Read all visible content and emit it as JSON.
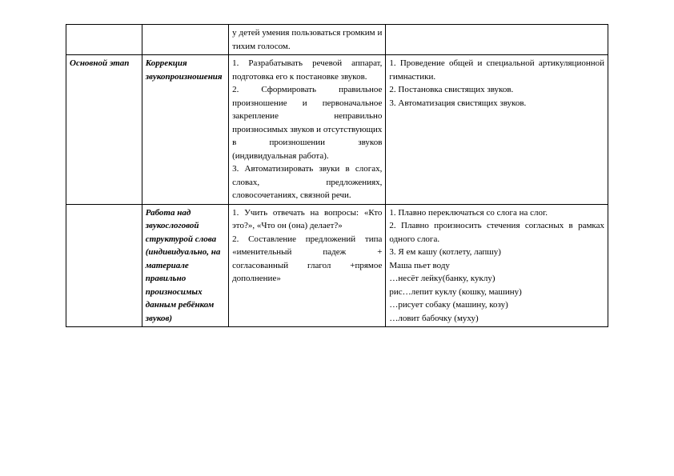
{
  "table": {
    "rows": [
      {
        "c1": "",
        "c2": "",
        "c3": "у детей умения пользоваться громким и тихим голосом.",
        "c4": ""
      },
      {
        "c1": "Основной этап",
        "c2": "Коррекция звукопроизношения",
        "c3": "1. Разрабатывать речевой аппарат, подготовка его к постановке звуков.\n2. Сформировать правильное произношение и первоначальное закрепление неправильно произносимых звуков и отсутствующих в произношении звуков (индивидуальная работа).\n3. Автоматизировать звуки в слогах, словах, предложениях, словосочетаниях, связной речи.",
        "c4": "1. Проведение общей и специальной артикуляционной гимнастики.\n2. Постановка свистящих звуков.\n3. Автоматизация свистящих звуков."
      },
      {
        "c1": "",
        "c2": "Работа над звукослоговой структурой слова (индивидуально, на материале правильно произносимых данным ребёнком звуков)",
        "c3": "1. Учить отвечать на вопросы: «Кто это?», «Что он (она) делает?»\n2. Составление предложений типа «именительный падеж + согласованный глагол +прямое дополнение»",
        "c4": "1. Плавно переключаться со слога на слог.\n2. Плавно произносить стечения согласных в рамках одного слога.\n3. Я ем кашу (котлету, лапшу)\nМаша пьет воду\n…несёт лейку(банку, куклу)\nрис…лепит куклу (кошку, машину)\n…рисует собаку (машину, козу)\n…ловит бабочку (муху)"
      }
    ]
  }
}
